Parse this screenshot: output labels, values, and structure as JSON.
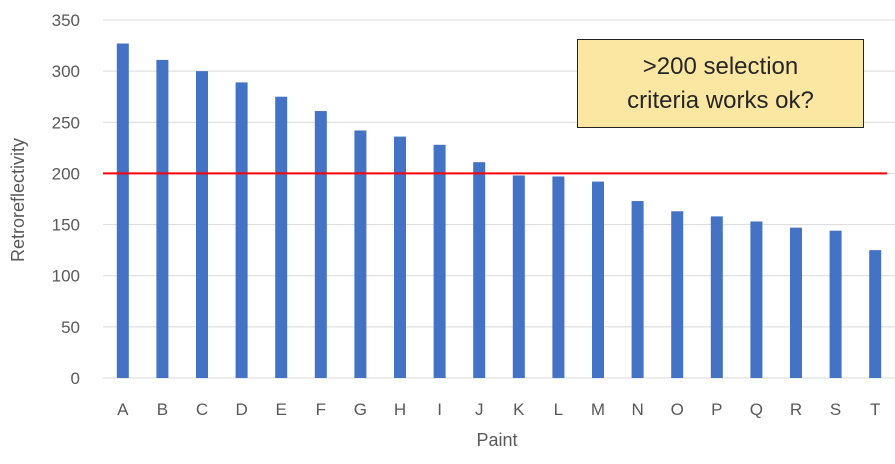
{
  "chart_data": {
    "type": "bar",
    "xlabel": "Paint",
    "ylabel": "Retroreflectivity",
    "categories": [
      "A",
      "B",
      "C",
      "D",
      "E",
      "F",
      "G",
      "H",
      "I",
      "J",
      "K",
      "L",
      "M",
      "N",
      "O",
      "P",
      "Q",
      "R",
      "S",
      "T"
    ],
    "values": [
      327,
      311,
      300,
      289,
      275,
      261,
      242,
      236,
      228,
      211,
      198,
      197,
      192,
      173,
      163,
      158,
      153,
      147,
      144,
      125
    ],
    "ylim": [
      0,
      350
    ],
    "yticks": [
      0,
      50,
      100,
      150,
      200,
      250,
      300,
      350
    ],
    "grid": "horizontal",
    "bar_color": "#4472c4",
    "reference_line": {
      "value": 200,
      "color": "#ff0000"
    },
    "annotation": ">200 selection\ncriteria works ok?"
  }
}
